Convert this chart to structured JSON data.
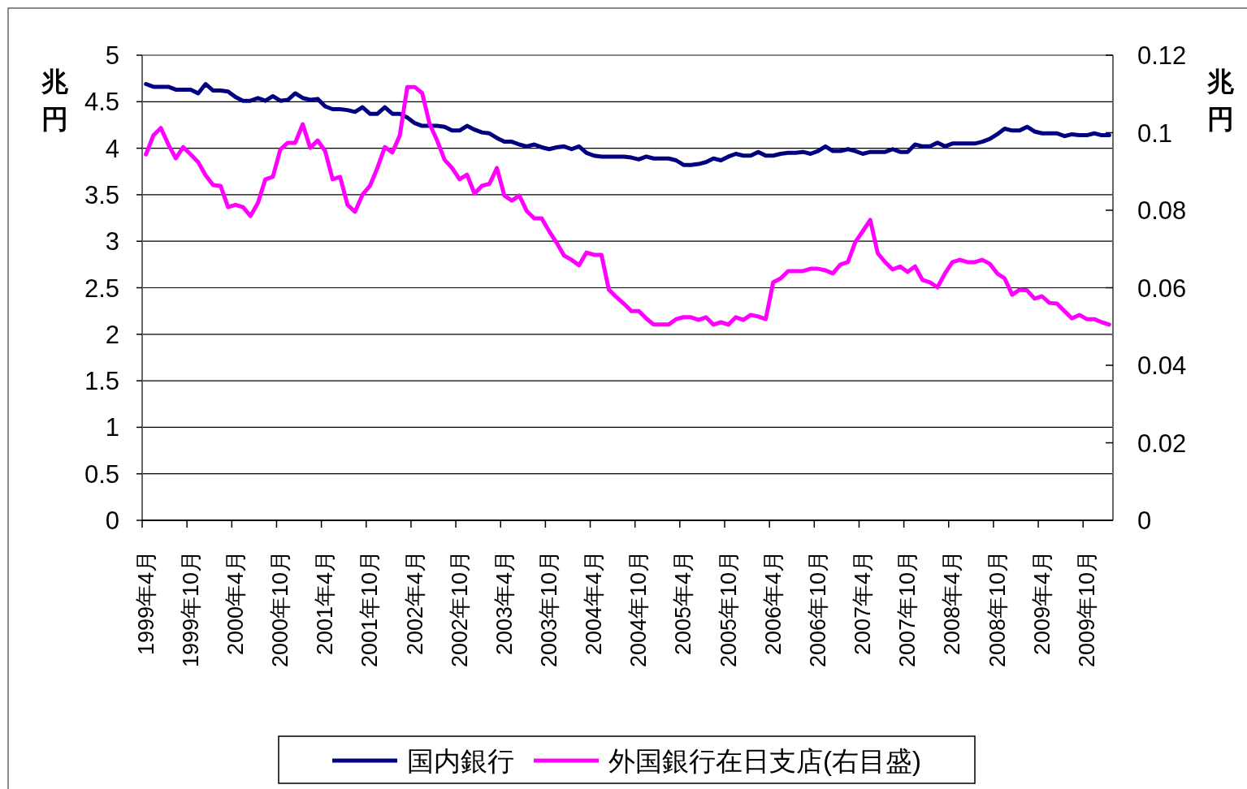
{
  "chart_data": {
    "type": "line",
    "ylabel": "兆円",
    "y2label": "兆円",
    "categories": [
      "1999年4月",
      null,
      null,
      null,
      null,
      null,
      "1999年10月",
      null,
      null,
      null,
      null,
      null,
      "2000年4月",
      null,
      null,
      null,
      null,
      null,
      "2000年10月",
      null,
      null,
      null,
      null,
      null,
      "2001年4月",
      null,
      null,
      null,
      null,
      null,
      "2001年10月",
      null,
      null,
      null,
      null,
      null,
      "2002年4月",
      null,
      null,
      null,
      null,
      null,
      "2002年10月",
      null,
      null,
      null,
      null,
      null,
      "2003年4月",
      null,
      null,
      null,
      null,
      null,
      "2003年10月",
      null,
      null,
      null,
      null,
      null,
      "2004年4月",
      null,
      null,
      null,
      null,
      null,
      "2004年10月",
      null,
      null,
      null,
      null,
      null,
      "2005年4月",
      null,
      null,
      null,
      null,
      null,
      "2005年10月",
      null,
      null,
      null,
      null,
      null,
      "2006年4月",
      null,
      null,
      null,
      null,
      null,
      "2006年10月",
      null,
      null,
      null,
      null,
      null,
      "2007年4月",
      null,
      null,
      null,
      null,
      null,
      "2007年10月",
      null,
      null,
      null,
      null,
      null,
      "2008年4月",
      null,
      null,
      null,
      null,
      null,
      "2008年10月",
      null,
      null,
      null,
      null,
      null,
      "2009年4月",
      null,
      null,
      null,
      null,
      null,
      "2009年10月",
      null,
      null,
      null
    ],
    "series": [
      {
        "name": "国内銀行",
        "color": "#000080",
        "values": [
          4.69,
          4.66,
          4.66,
          4.66,
          4.63,
          4.63,
          4.63,
          4.59,
          4.69,
          4.62,
          4.62,
          4.61,
          4.55,
          4.51,
          4.51,
          4.54,
          4.51,
          4.56,
          4.51,
          4.52,
          4.59,
          4.54,
          4.52,
          4.53,
          4.45,
          4.42,
          4.42,
          4.41,
          4.39,
          4.44,
          4.37,
          4.37,
          4.44,
          4.37,
          4.37,
          4.33,
          4.27,
          4.24,
          4.24,
          4.24,
          4.23,
          4.19,
          4.19,
          4.24,
          4.2,
          4.17,
          4.16,
          4.11,
          4.07,
          4.07,
          4.04,
          4.02,
          4.04,
          4.01,
          3.99,
          4.01,
          4.02,
          3.99,
          4.02,
          3.95,
          3.92,
          3.91,
          3.91,
          3.91,
          3.91,
          3.9,
          3.88,
          3.91,
          3.89,
          3.89,
          3.89,
          3.87,
          3.82,
          3.82,
          3.83,
          3.85,
          3.89,
          3.87,
          3.91,
          3.94,
          3.92,
          3.92,
          3.96,
          3.92,
          3.92,
          3.94,
          3.95,
          3.95,
          3.96,
          3.94,
          3.97,
          4.02,
          3.97,
          3.97,
          3.99,
          3.97,
          3.94,
          3.96,
          3.96,
          3.96,
          3.99,
          3.96,
          3.96,
          4.04,
          4.02,
          4.02,
          4.06,
          4.02,
          4.05,
          4.05,
          4.05,
          4.05,
          4.07,
          4.1,
          4.15,
          4.21,
          4.19,
          4.19,
          4.23,
          4.18,
          4.16,
          4.16,
          4.16,
          4.13,
          4.15,
          4.14,
          4.14,
          4.16,
          4.14,
          4.14
        ]
      },
      {
        "name": "外国銀行在日支店(右目盛)",
        "color": "#ff00ff",
        "axis": "y2",
        "values": [
          0.0944,
          0.0993,
          0.1012,
          0.097,
          0.0934,
          0.0963,
          0.0944,
          0.0924,
          0.089,
          0.0865,
          0.0863,
          0.0808,
          0.0814,
          0.0808,
          0.0785,
          0.0819,
          0.088,
          0.0886,
          0.0957,
          0.0974,
          0.0974,
          0.1022,
          0.0961,
          0.098,
          0.0953,
          0.088,
          0.0886,
          0.0814,
          0.0796,
          0.084,
          0.0863,
          0.0909,
          0.0963,
          0.0949,
          0.0993,
          0.1118,
          0.1118,
          0.1102,
          0.1022,
          0.098,
          0.093,
          0.0909,
          0.088,
          0.0892,
          0.0843,
          0.0863,
          0.0868,
          0.0909,
          0.0838,
          0.0825,
          0.0838,
          0.0798,
          0.0779,
          0.0779,
          0.0746,
          0.0716,
          0.0683,
          0.0672,
          0.0658,
          0.0691,
          0.0685,
          0.0685,
          0.0595,
          0.0576,
          0.0559,
          0.054,
          0.054,
          0.0521,
          0.0505,
          0.0505,
          0.0505,
          0.0519,
          0.0524,
          0.0524,
          0.0517,
          0.0524,
          0.0505,
          0.0511,
          0.0505,
          0.0524,
          0.0517,
          0.053,
          0.0526,
          0.0519,
          0.0614,
          0.0624,
          0.0643,
          0.0643,
          0.0643,
          0.0649,
          0.0649,
          0.0645,
          0.0637,
          0.066,
          0.0666,
          0.0718,
          0.0746,
          0.0775,
          0.0689,
          0.0666,
          0.0647,
          0.0655,
          0.0641,
          0.0655,
          0.062,
          0.0614,
          0.0601,
          0.0637,
          0.0666,
          0.0672,
          0.0666,
          0.0666,
          0.0672,
          0.0662,
          0.0637,
          0.0624,
          0.0582,
          0.0595,
          0.0593,
          0.0572,
          0.0578,
          0.0561,
          0.0559,
          0.054,
          0.0521,
          0.053,
          0.0519,
          0.0519,
          0.0511,
          0.0505
        ]
      }
    ],
    "ylim": [
      0,
      5
    ],
    "yticks": [
      0,
      0.5,
      1,
      1.5,
      2,
      2.5,
      3,
      3.5,
      4,
      4.5,
      5
    ],
    "y2lim": [
      0,
      0.12
    ],
    "y2ticks": [
      0,
      0.02,
      0.04,
      0.06,
      0.08,
      0.1,
      0.12
    ],
    "grid": "y",
    "legend": "bottom"
  }
}
